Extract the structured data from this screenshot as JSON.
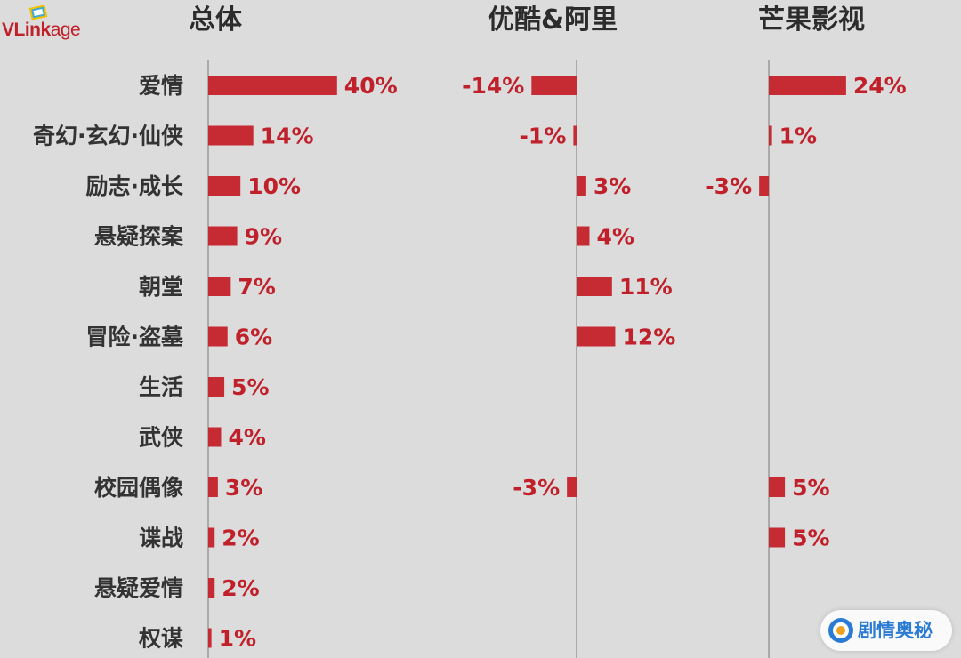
{
  "brand": {
    "name_prefix": "VL",
    "name_mid": "ink",
    "name_suffix": "age"
  },
  "panels": {
    "overall": "总体",
    "youku_ali": "优酷&阿里",
    "mango": "芒果影视"
  },
  "watermark": {
    "text": "剧情奥秘"
  },
  "chart_data": {
    "type": "bar",
    "orientation": "horizontal",
    "categories": [
      "爱情",
      "奇幻·玄幻·仙侠",
      "励志·成长",
      "悬疑探案",
      "朝堂",
      "冒险·盗墓",
      "生活",
      "武侠",
      "校园偶像",
      "谍战",
      "悬疑爱情",
      "权谋"
    ],
    "series": [
      {
        "name": "总体",
        "values": [
          40,
          14,
          10,
          9,
          7,
          6,
          5,
          4,
          3,
          2,
          2,
          1
        ]
      },
      {
        "name": "优酷&阿里",
        "values": [
          -14,
          -1,
          3,
          4,
          11,
          12,
          null,
          null,
          -3,
          null,
          null,
          null
        ]
      },
      {
        "name": "芒果影视",
        "values": [
          24,
          1,
          -3,
          null,
          null,
          null,
          null,
          null,
          5,
          5,
          null,
          null
        ]
      }
    ],
    "unit": "%",
    "bar_color": "#c62a33",
    "axis_color": "#9a9a9a",
    "grid": false
  }
}
